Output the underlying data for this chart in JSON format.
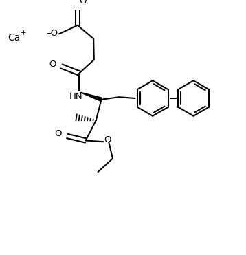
{
  "background": "#ffffff",
  "line_color": "#000000",
  "lw": 1.5,
  "fs": 9.5,
  "figsize": [
    3.58,
    3.71
  ],
  "dpi": 100,
  "xlim": [
    0,
    10
  ],
  "ylim": [
    0,
    10
  ]
}
